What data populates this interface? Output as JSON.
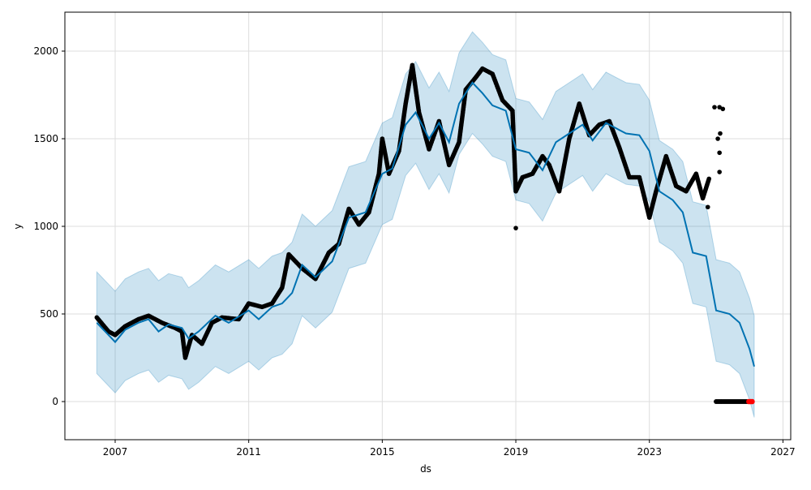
{
  "chart_data": {
    "type": "line",
    "title": "",
    "xlabel": "ds",
    "ylabel": "y",
    "xlim": [
      2005.6,
      2026.5
    ],
    "ylim": [
      -220,
      2220
    ],
    "grid": true,
    "x_ticks": [
      {
        "value": 2007,
        "label": "2007"
      },
      {
        "value": 2011,
        "label": "2011"
      },
      {
        "value": 2015,
        "label": "2015"
      },
      {
        "value": 2019,
        "label": "2019"
      },
      {
        "value": 2023,
        "label": "2023"
      },
      {
        "value": 2027,
        "label": "2027"
      }
    ],
    "y_ticks": [
      {
        "value": 0,
        "label": "0"
      },
      {
        "value": 500,
        "label": "500"
      },
      {
        "value": 1000,
        "label": "1000"
      },
      {
        "value": 1500,
        "label": "1500"
      },
      {
        "value": 2000,
        "label": "2000"
      }
    ],
    "colors": {
      "forecast": "#0072B2",
      "band": "#0072B2",
      "observed": "#000000",
      "highlight": "#ff0000"
    },
    "forecast": [
      [
        2006.45,
        450
      ],
      [
        2006.7,
        400
      ],
      [
        2007.0,
        340
      ],
      [
        2007.3,
        410
      ],
      [
        2007.7,
        450
      ],
      [
        2008.0,
        470
      ],
      [
        2008.3,
        400
      ],
      [
        2008.6,
        440
      ],
      [
        2009.0,
        420
      ],
      [
        2009.2,
        360
      ],
      [
        2009.5,
        400
      ],
      [
        2010.0,
        490
      ],
      [
        2010.4,
        450
      ],
      [
        2011.0,
        520
      ],
      [
        2011.3,
        470
      ],
      [
        2011.7,
        540
      ],
      [
        2012.0,
        560
      ],
      [
        2012.3,
        620
      ],
      [
        2012.6,
        780
      ],
      [
        2013.0,
        710
      ],
      [
        2013.5,
        800
      ],
      [
        2014.0,
        1050
      ],
      [
        2014.5,
        1080
      ],
      [
        2015.0,
        1300
      ],
      [
        2015.3,
        1330
      ],
      [
        2015.7,
        1580
      ],
      [
        2016.0,
        1650
      ],
      [
        2016.4,
        1500
      ],
      [
        2016.7,
        1590
      ],
      [
        2017.0,
        1480
      ],
      [
        2017.3,
        1700
      ],
      [
        2017.7,
        1820
      ],
      [
        2018.0,
        1760
      ],
      [
        2018.3,
        1690
      ],
      [
        2018.7,
        1660
      ],
      [
        2019.0,
        1440
      ],
      [
        2019.4,
        1420
      ],
      [
        2019.8,
        1320
      ],
      [
        2020.2,
        1480
      ],
      [
        2020.6,
        1530
      ],
      [
        2021.0,
        1580
      ],
      [
        2021.3,
        1490
      ],
      [
        2021.7,
        1590
      ],
      [
        2022.0,
        1560
      ],
      [
        2022.3,
        1530
      ],
      [
        2022.7,
        1520
      ],
      [
        2023.0,
        1430
      ],
      [
        2023.3,
        1200
      ],
      [
        2023.7,
        1150
      ],
      [
        2024.0,
        1080
      ],
      [
        2024.3,
        850
      ],
      [
        2024.7,
        830
      ],
      [
        2025.0,
        520
      ],
      [
        2025.4,
        500
      ],
      [
        2025.7,
        450
      ],
      [
        2026.0,
        300
      ],
      [
        2026.14,
        200
      ]
    ],
    "band_halfwidth": 290,
    "observed": [
      [
        2006.45,
        480
      ],
      [
        2006.8,
        400
      ],
      [
        2007.0,
        380
      ],
      [
        2007.3,
        430
      ],
      [
        2007.7,
        470
      ],
      [
        2008.0,
        490
      ],
      [
        2008.4,
        450
      ],
      [
        2008.8,
        420
      ],
      [
        2009.0,
        400
      ],
      [
        2009.1,
        250
      ],
      [
        2009.3,
        380
      ],
      [
        2009.6,
        330
      ],
      [
        2009.9,
        450
      ],
      [
        2010.2,
        480
      ],
      [
        2010.7,
        470
      ],
      [
        2011.0,
        560
      ],
      [
        2011.4,
        540
      ],
      [
        2011.7,
        560
      ],
      [
        2012.0,
        650
      ],
      [
        2012.2,
        840
      ],
      [
        2012.6,
        760
      ],
      [
        2013.0,
        700
      ],
      [
        2013.4,
        850
      ],
      [
        2013.7,
        900
      ],
      [
        2014.0,
        1100
      ],
      [
        2014.3,
        1010
      ],
      [
        2014.6,
        1080
      ],
      [
        2014.9,
        1300
      ],
      [
        2015.0,
        1500
      ],
      [
        2015.2,
        1300
      ],
      [
        2015.5,
        1430
      ],
      [
        2015.7,
        1700
      ],
      [
        2015.9,
        1920
      ],
      [
        2016.1,
        1650
      ],
      [
        2016.4,
        1440
      ],
      [
        2016.7,
        1600
      ],
      [
        2017.0,
        1350
      ],
      [
        2017.3,
        1480
      ],
      [
        2017.5,
        1780
      ],
      [
        2017.8,
        1850
      ],
      [
        2018.0,
        1900
      ],
      [
        2018.3,
        1870
      ],
      [
        2018.6,
        1720
      ],
      [
        2018.9,
        1660
      ],
      [
        2019.0,
        1200
      ],
      [
        2019.2,
        1280
      ],
      [
        2019.5,
        1300
      ],
      [
        2019.8,
        1400
      ],
      [
        2020.0,
        1350
      ],
      [
        2020.3,
        1200
      ],
      [
        2020.6,
        1500
      ],
      [
        2020.9,
        1700
      ],
      [
        2021.2,
        1520
      ],
      [
        2021.5,
        1580
      ],
      [
        2021.8,
        1600
      ],
      [
        2022.1,
        1450
      ],
      [
        2022.4,
        1280
      ],
      [
        2022.7,
        1280
      ],
      [
        2023.0,
        1050
      ],
      [
        2023.2,
        1200
      ],
      [
        2023.5,
        1400
      ],
      [
        2023.8,
        1230
      ],
      [
        2024.1,
        1200
      ],
      [
        2024.4,
        1300
      ],
      [
        2024.6,
        1160
      ],
      [
        2024.8,
        1280
      ]
    ],
    "observed_outliers": [
      [
        2019.0,
        990
      ],
      [
        2024.75,
        1110
      ],
      [
        2024.95,
        1680
      ],
      [
        2025.1,
        1680
      ],
      [
        2025.2,
        1670
      ],
      [
        2025.05,
        1500
      ],
      [
        2025.1,
        1420
      ],
      [
        2025.1,
        1310
      ],
      [
        2025.12,
        1530
      ]
    ],
    "observed_zero_segment": [
      2025.0,
      2026.0
    ],
    "highlight_segment": [
      2025.98,
      2026.12
    ]
  }
}
